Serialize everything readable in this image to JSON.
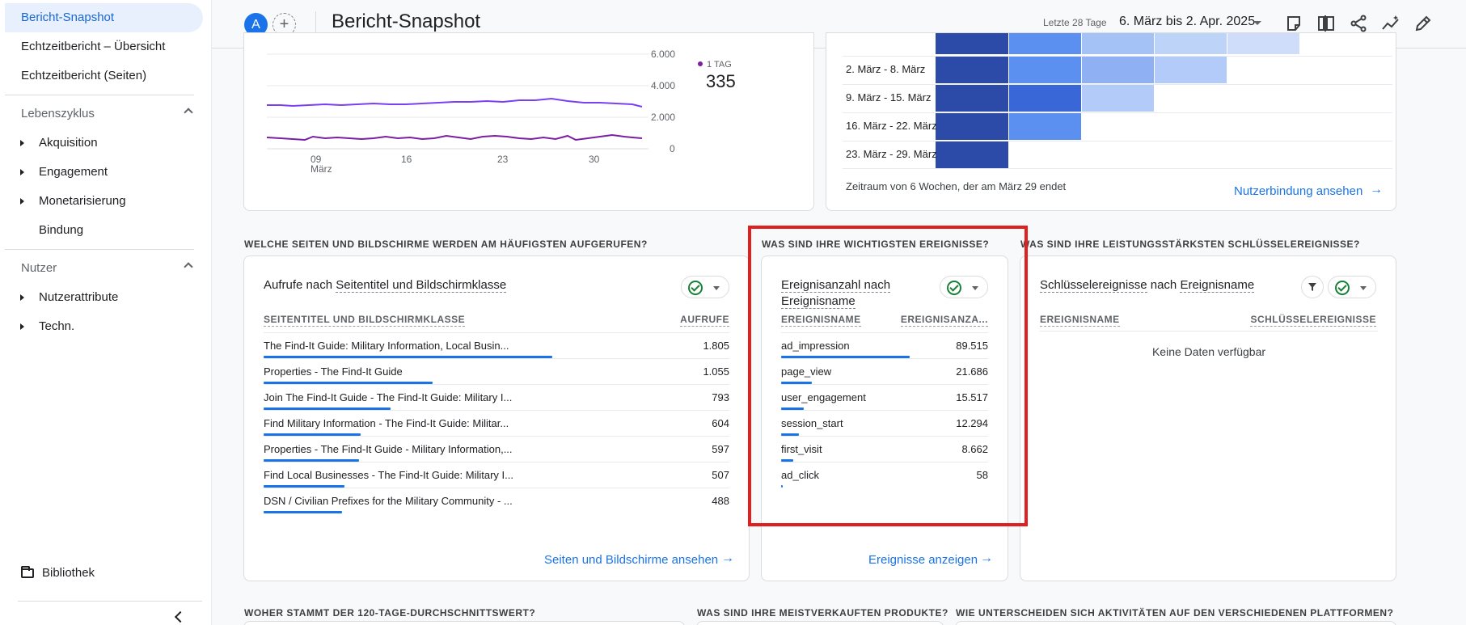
{
  "sidebar": {
    "items": [
      {
        "label": "Bericht-Snapshot"
      },
      {
        "label": "Echtzeitbericht – Übersicht"
      },
      {
        "label": "Echtzeitbericht (Seiten)"
      }
    ],
    "lifecycle": {
      "title": "Lebenszyklus",
      "items": [
        {
          "label": "Akquisition"
        },
        {
          "label": "Engagement"
        },
        {
          "label": "Monetarisierung"
        },
        {
          "label": "Bindung"
        }
      ]
    },
    "users": {
      "title": "Nutzer",
      "items": [
        {
          "label": "Nutzerattribute"
        },
        {
          "label": "Techn."
        }
      ]
    },
    "library": "Bibliothek"
  },
  "header": {
    "avatar": "A",
    "add": "+",
    "title": "Bericht-Snapshot",
    "date_label": "Letzte 28 Tage",
    "date_range": "6. März bis 2. Apr. 2025"
  },
  "line_chart": {
    "y_ticks": [
      "6.000",
      "4.000",
      "2.000",
      "0"
    ],
    "x_ticks": [
      "09",
      "16",
      "23",
      "30"
    ],
    "x_sub": "März",
    "legend_label": "1 TAG",
    "legend_value": "335",
    "series_color_1": "#7b3ff2",
    "series_color_2": "#7b1fa2"
  },
  "cohort": {
    "rows": [
      "2. März - 8. März",
      "9. März - 15. März",
      "16. März - 22. März",
      "23. März - 29. März"
    ],
    "footer": "Zeitraum von 6 Wochen, der am März 29 endet",
    "link": "Nutzerbindung ansehen"
  },
  "pages": {
    "section": "WELCHE SEITEN UND BILDSCHIRME WERDEN AM HÄUFIGSTEN AUFGERUFEN?",
    "title_a": "Aufrufe nach ",
    "title_b": "Seitentitel und Bildschirmklasse",
    "col1": "SEITENTITEL UND BILDSCHIRMKLASSE",
    "col2": "AUFRUFE",
    "rows": [
      {
        "name": "The Find-It Guide: Military Information, Local Busin...",
        "value": "1.805",
        "raw": 1805
      },
      {
        "name": "Properties - The Find-It Guide",
        "value": "1.055",
        "raw": 1055
      },
      {
        "name": "Join The Find-It Guide - The Find-It Guide: Military I...",
        "value": "793",
        "raw": 793
      },
      {
        "name": "Find Military Information - The Find-It Guide: Militar...",
        "value": "604",
        "raw": 604
      },
      {
        "name": "Properties - The Find-It Guide - Military Information,...",
        "value": "597",
        "raw": 597
      },
      {
        "name": "Find Local Businesses - The Find-It Guide: Military I...",
        "value": "507",
        "raw": 507
      },
      {
        "name": "DSN / Civilian Prefixes for the Military Community - ...",
        "value": "488",
        "raw": 488
      }
    ],
    "link": "Seiten und Bildschirme ansehen"
  },
  "events": {
    "section": "WAS SIND IHRE WICHTIGSTEN EREIGNISSE?",
    "title_line1": "Ereignisanzahl nach",
    "title_line2": "Ereignisname",
    "col1": "EREIGNISNAME",
    "col2": "EREIGNISANZA...",
    "rows": [
      {
        "name": "ad_impression",
        "value": "89.515",
        "raw": 89515
      },
      {
        "name": "page_view",
        "value": "21.686",
        "raw": 21686
      },
      {
        "name": "user_engagement",
        "value": "15.517",
        "raw": 15517
      },
      {
        "name": "session_start",
        "value": "12.294",
        "raw": 12294
      },
      {
        "name": "first_visit",
        "value": "8.662",
        "raw": 8662
      },
      {
        "name": "ad_click",
        "value": "58",
        "raw": 58
      }
    ],
    "link": "Ereignisse anzeigen"
  },
  "key_events": {
    "section": "WAS SIND IHRE LEISTUNGSSTÄRKSTEN SCHLÜSSELEREIGNISSE?",
    "title_a": "Schlüsselereignisse",
    "title_mid": " nach ",
    "title_b": "Ereignisname",
    "col1": "EREIGNISNAME",
    "col2": "SCHLÜSSELEREIGNISSE",
    "empty": "Keine Daten verfügbar"
  },
  "bottom_sections": [
    "WOHER STAMMT DER 120-TAGE-DURCHSCHNITTSWERT?",
    "WAS SIND IHRE MEISTVERKAUFTEN PRODUKTE?",
    "WIE UNTERSCHEIDEN SICH AKTIVITÄTEN AUF DEN VERSCHIEDENEN PLATTFORMEN?"
  ],
  "colors": {
    "accent": "#1a73e8",
    "highlight": "#e01f1f",
    "check": "#188038"
  }
}
